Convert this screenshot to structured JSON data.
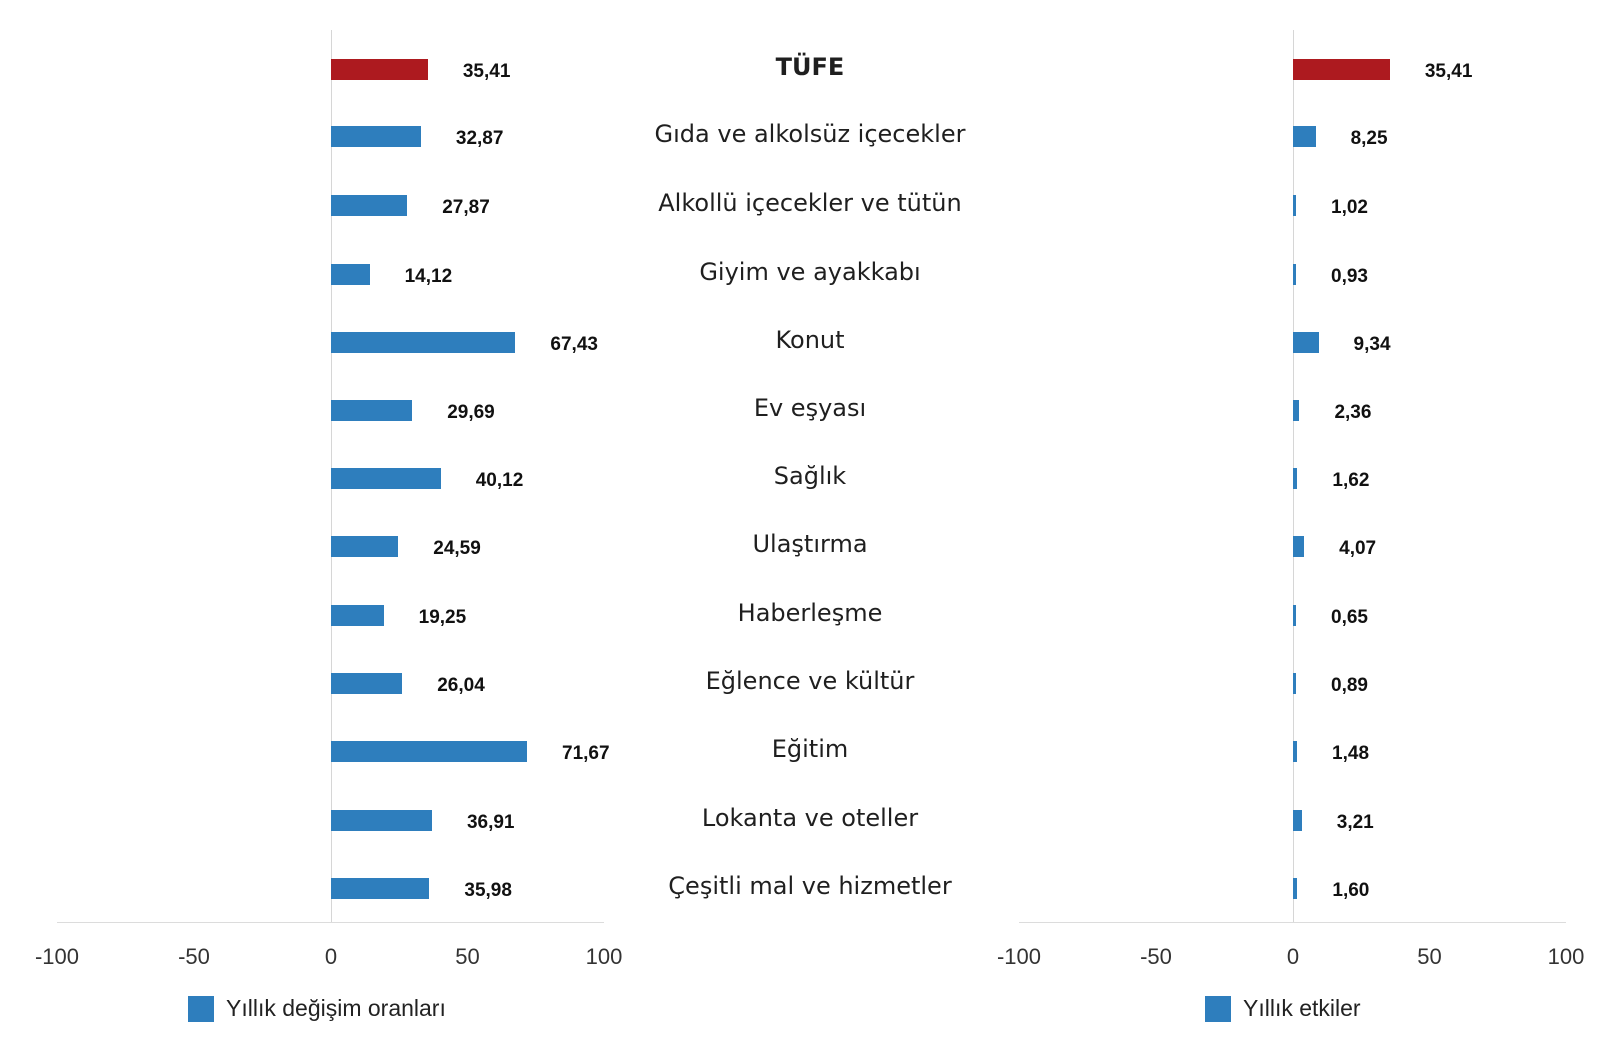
{
  "colors": {
    "highlight": "#ad1a1f",
    "series": "#2e7ebd",
    "axis": "#dcdcdc"
  },
  "categories": [
    "TÜFE",
    "Gıda ve alkolsüz içecekler",
    "Alkollü içecekler ve tütün",
    "Giyim ve ayakkabı",
    "Konut",
    "Ev eşyası",
    "Sağlık",
    "Ulaştırma",
    "Haberleşme",
    "Eğlence ve kültür",
    "Eğitim",
    "Lokanta ve oteller",
    "Çeşitli mal ve hizmetler"
  ],
  "left": {
    "legend": "Yıllık değişim oranları",
    "ticks": [
      "-100",
      "-50",
      "0",
      "50",
      "100"
    ],
    "labels": [
      "35,41",
      "32,87",
      "27,87",
      "14,12",
      "67,43",
      "29,69",
      "40,12",
      "24,59",
      "19,25",
      "26,04",
      "71,67",
      "36,91",
      "35,98"
    ]
  },
  "right": {
    "legend": "Yıllık etkiler",
    "ticks": [
      "-100",
      "-50",
      "0",
      "50",
      "100"
    ],
    "labels": [
      "35,41",
      "8,25",
      "1,02",
      "0,93",
      "9,34",
      "2,36",
      "1,62",
      "4,07",
      "0,65",
      "0,89",
      "1,48",
      "3,21",
      "1,60"
    ]
  },
  "chart_data": [
    {
      "type": "bar",
      "orientation": "horizontal",
      "title": "",
      "xlabel": "",
      "ylabel": "",
      "xlim": [
        -100,
        100
      ],
      "xticks": [
        -100,
        -50,
        0,
        50,
        100
      ],
      "grid": false,
      "legend_position": "bottom",
      "categories": [
        "TÜFE",
        "Gıda ve alkolsüz içecekler",
        "Alkollü içecekler ve tütün",
        "Giyim ve ayakkabı",
        "Konut",
        "Ev eşyası",
        "Sağlık",
        "Ulaştırma",
        "Haberleşme",
        "Eğlence ve kültür",
        "Eğitim",
        "Lokanta ve oteller",
        "Çeşitli mal ve hizmetler"
      ],
      "series": [
        {
          "name": "Yıllık değişim oranları",
          "values": [
            35.41,
            32.87,
            27.87,
            14.12,
            67.43,
            29.69,
            40.12,
            24.59,
            19.25,
            26.04,
            71.67,
            36.91,
            35.98
          ]
        }
      ],
      "highlight": {
        "category": "TÜFE",
        "color": "#ad1a1f"
      }
    },
    {
      "type": "bar",
      "orientation": "horizontal",
      "title": "",
      "xlabel": "",
      "ylabel": "",
      "xlim": [
        -100,
        100
      ],
      "xticks": [
        -100,
        -50,
        0,
        50,
        100
      ],
      "grid": false,
      "legend_position": "bottom",
      "categories": [
        "TÜFE",
        "Gıda ve alkolsüz içecekler",
        "Alkollü içecekler ve tütün",
        "Giyim ve ayakkabı",
        "Konut",
        "Ev eşyası",
        "Sağlık",
        "Ulaştırma",
        "Haberleşme",
        "Eğlence ve kültür",
        "Eğitim",
        "Lokanta ve oteller",
        "Çeşitli mal ve hizmetler"
      ],
      "series": [
        {
          "name": "Yıllık etkiler",
          "values": [
            35.41,
            8.25,
            1.02,
            0.93,
            9.34,
            2.36,
            1.62,
            4.07,
            0.65,
            0.89,
            1.48,
            3.21,
            1.6
          ]
        }
      ],
      "highlight": {
        "category": "TÜFE",
        "color": "#ad1a1f"
      }
    }
  ]
}
